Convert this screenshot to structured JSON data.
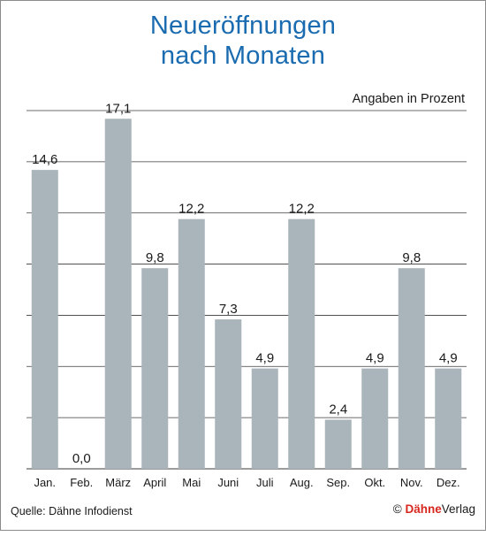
{
  "title_line1": "Neueröffnungen",
  "title_line2": "nach Monaten",
  "unit_note": "Angaben in Prozent",
  "source": "Quelle: Dähne Infodienst",
  "publisher_symbol": "©",
  "publisher_brand": "Dähne",
  "publisher_suffix": "Verlag",
  "colors": {
    "bar": "#a9b4bb",
    "title": "#1a6bb0",
    "brand": "#d7261e",
    "grid": "#3a3a3a"
  },
  "chart_data": {
    "type": "bar",
    "title": "Neueröffnungen nach Monaten",
    "categories": [
      "Jan.",
      "Feb.",
      "März",
      "April",
      "Mai",
      "Juni",
      "Juli",
      "Aug.",
      "Sep.",
      "Okt.",
      "Nov.",
      "Dez."
    ],
    "values": [
      14.6,
      0.0,
      17.1,
      9.8,
      12.2,
      7.3,
      4.9,
      12.2,
      2.4,
      4.9,
      9.8,
      4.9
    ],
    "value_labels": [
      "14,6",
      "0,0",
      "17,1",
      "9,8",
      "12,2",
      "7,3",
      "4,9",
      "12,2",
      "2,4",
      "4,9",
      "9,8",
      "4,9"
    ],
    "ylim": [
      0,
      17.5
    ],
    "grid": true
  }
}
